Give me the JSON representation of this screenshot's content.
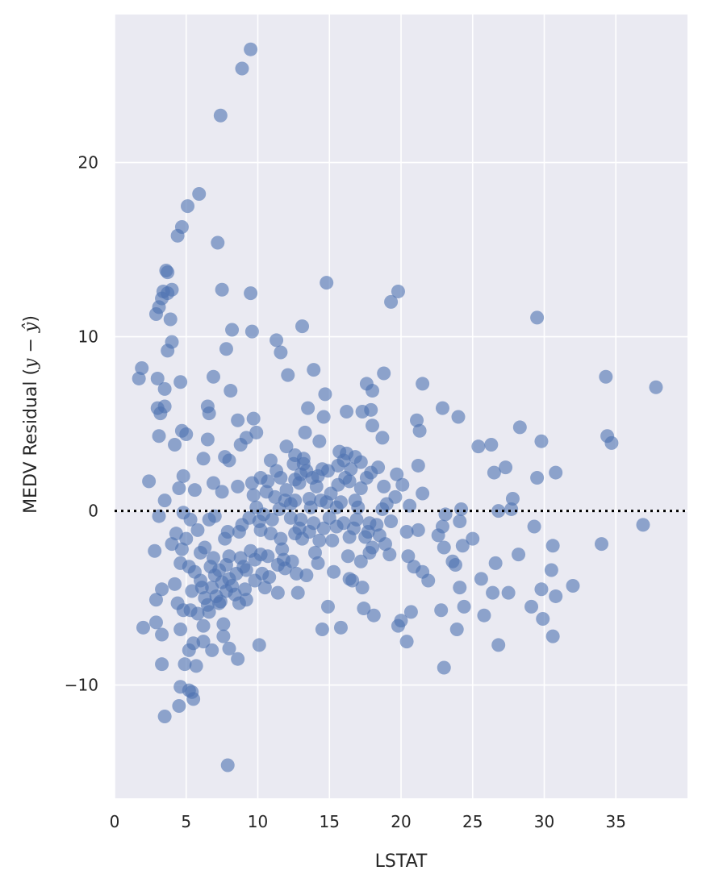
{
  "chart_data": {
    "type": "scatter",
    "title": "",
    "xlabel": "LSTAT",
    "ylabel_parts": [
      "MEDV Residual (",
      "y",
      " − ",
      "ŷ",
      ")"
    ],
    "xlim": [
      0,
      40
    ],
    "ylim": [
      -16.5,
      28.5
    ],
    "xticks": [
      0,
      5,
      10,
      15,
      20,
      25,
      30,
      35
    ],
    "xtick_labels": [
      "0",
      "5",
      "10",
      "15",
      "20",
      "25",
      "30",
      "35"
    ],
    "yticks": [
      -10,
      0,
      10,
      20
    ],
    "ytick_labels": [
      "−10",
      "0",
      "10",
      "20"
    ],
    "grid": true,
    "reference_line": {
      "y": 0,
      "style": "dotted",
      "color": "#000000"
    },
    "point_color": "#4c72b0",
    "point_alpha": 0.6,
    "background_color": "#eaeaf2",
    "points": [
      [
        9.5,
        26.5
      ],
      [
        8.9,
        25.4
      ],
      [
        7.4,
        22.7
      ],
      [
        5.9,
        18.2
      ],
      [
        5.1,
        17.5
      ],
      [
        4.7,
        16.3
      ],
      [
        4.4,
        15.8
      ],
      [
        7.2,
        15.4
      ],
      [
        3.6,
        13.8
      ],
      [
        3.7,
        13.7
      ],
      [
        14.8,
        13.1
      ],
      [
        7.5,
        12.7
      ],
      [
        4.0,
        12.7
      ],
      [
        3.4,
        12.6
      ],
      [
        3.7,
        12.5
      ],
      [
        9.5,
        12.5
      ],
      [
        19.8,
        12.6
      ],
      [
        3.3,
        12.2
      ],
      [
        3.1,
        11.7
      ],
      [
        19.3,
        12.0
      ],
      [
        2.9,
        11.3
      ],
      [
        3.9,
        11.0
      ],
      [
        29.5,
        11.1
      ],
      [
        8.2,
        10.4
      ],
      [
        13.1,
        10.6
      ],
      [
        9.6,
        10.3
      ],
      [
        11.3,
        9.8
      ],
      [
        4.0,
        9.7
      ],
      [
        3.7,
        9.2
      ],
      [
        11.6,
        9.1
      ],
      [
        7.8,
        9.3
      ],
      [
        1.9,
        8.2
      ],
      [
        1.7,
        7.6
      ],
      [
        3.0,
        7.6
      ],
      [
        4.6,
        7.4
      ],
      [
        6.9,
        7.7
      ],
      [
        13.9,
        8.1
      ],
      [
        12.1,
        7.8
      ],
      [
        18.8,
        7.9
      ],
      [
        21.5,
        7.3
      ],
      [
        3.5,
        7.0
      ],
      [
        8.1,
        6.9
      ],
      [
        17.6,
        7.3
      ],
      [
        18.0,
        6.9
      ],
      [
        34.3,
        7.7
      ],
      [
        37.8,
        7.1
      ],
      [
        14.7,
        6.7
      ],
      [
        3.0,
        5.9
      ],
      [
        3.5,
        6.0
      ],
      [
        6.5,
        6.0
      ],
      [
        3.2,
        5.6
      ],
      [
        4.7,
        4.6
      ],
      [
        5.0,
        4.4
      ],
      [
        6.6,
        5.6
      ],
      [
        8.6,
        5.2
      ],
      [
        9.7,
        5.3
      ],
      [
        13.5,
        5.9
      ],
      [
        14.6,
        5.4
      ],
      [
        16.2,
        5.7
      ],
      [
        17.3,
        5.7
      ],
      [
        17.9,
        5.8
      ],
      [
        18.0,
        4.9
      ],
      [
        21.1,
        5.2
      ],
      [
        21.3,
        4.6
      ],
      [
        22.9,
        5.9
      ],
      [
        24.0,
        5.4
      ],
      [
        28.3,
        4.8
      ],
      [
        3.1,
        4.3
      ],
      [
        4.2,
        3.8
      ],
      [
        6.5,
        4.1
      ],
      [
        9.2,
        4.2
      ],
      [
        9.9,
        4.5
      ],
      [
        8.8,
        3.8
      ],
      [
        12.0,
        3.7
      ],
      [
        13.3,
        4.5
      ],
      [
        14.3,
        4.0
      ],
      [
        15.7,
        3.4
      ],
      [
        16.2,
        3.3
      ],
      [
        17.2,
        2.8
      ],
      [
        18.7,
        4.2
      ],
      [
        29.8,
        4.0
      ],
      [
        34.4,
        4.3
      ],
      [
        34.7,
        3.9
      ],
      [
        25.4,
        3.7
      ],
      [
        26.3,
        3.8
      ],
      [
        2.4,
        1.7
      ],
      [
        4.8,
        2.0
      ],
      [
        6.2,
        3.0
      ],
      [
        7.7,
        3.1
      ],
      [
        8.0,
        2.9
      ],
      [
        10.9,
        2.9
      ],
      [
        11.3,
        2.3
      ],
      [
        12.6,
        3.2
      ],
      [
        13.2,
        2.7
      ],
      [
        14.5,
        2.4
      ],
      [
        16.8,
        3.1
      ],
      [
        18.4,
        2.5
      ],
      [
        19.7,
        2.1
      ],
      [
        21.2,
        2.6
      ],
      [
        26.5,
        2.2
      ],
      [
        27.3,
        2.5
      ],
      [
        29.5,
        1.9
      ],
      [
        30.8,
        2.2
      ],
      [
        4.5,
        1.3
      ],
      [
        5.6,
        1.2
      ],
      [
        6.9,
        1.6
      ],
      [
        7.5,
        1.1
      ],
      [
        8.6,
        1.4
      ],
      [
        9.6,
        1.6
      ],
      [
        10.2,
        1.9
      ],
      [
        11.6,
        1.9
      ],
      [
        12.9,
        1.6
      ],
      [
        14.1,
        1.4
      ],
      [
        15.1,
        1.0
      ],
      [
        16.1,
        1.9
      ],
      [
        17.2,
        1.3
      ],
      [
        18.8,
        1.4
      ],
      [
        20.1,
        1.5
      ],
      [
        21.5,
        1.0
      ],
      [
        3.5,
        0.6
      ],
      [
        9.7,
        0.9
      ],
      [
        10.6,
        1.1
      ],
      [
        11.2,
        0.8
      ],
      [
        11.9,
        0.6
      ],
      [
        12.3,
        0.4
      ],
      [
        13.6,
        0.7
      ],
      [
        14.8,
        0.5
      ],
      [
        15.5,
        0.2
      ],
      [
        17.0,
        0.2
      ],
      [
        18.7,
        0.1
      ],
      [
        20.6,
        0.3
      ],
      [
        23.1,
        -0.2
      ],
      [
        24.2,
        0.1
      ],
      [
        26.8,
        0.0
      ],
      [
        27.7,
        0.1
      ],
      [
        27.8,
        0.7
      ],
      [
        3.1,
        -0.3
      ],
      [
        4.8,
        -0.1
      ],
      [
        5.3,
        -0.5
      ],
      [
        6.6,
        -0.5
      ],
      [
        7.0,
        -0.3
      ],
      [
        9.4,
        -0.4
      ],
      [
        10.1,
        -0.6
      ],
      [
        11.0,
        -0.5
      ],
      [
        12.3,
        -0.4
      ],
      [
        13.0,
        -0.5
      ],
      [
        13.9,
        -0.7
      ],
      [
        15.0,
        -0.4
      ],
      [
        16.0,
        -0.7
      ],
      [
        16.9,
        -0.5
      ],
      [
        17.8,
        -0.7
      ],
      [
        18.3,
        -0.8
      ],
      [
        19.3,
        -0.6
      ],
      [
        22.9,
        -0.9
      ],
      [
        24.1,
        -0.6
      ],
      [
        29.3,
        -0.9
      ],
      [
        36.9,
        -0.8
      ],
      [
        4.0,
        -1.9
      ],
      [
        4.3,
        -1.3
      ],
      [
        5.0,
        -1.6
      ],
      [
        5.8,
        -1.1
      ],
      [
        7.7,
        -1.6
      ],
      [
        8.7,
        -1.2
      ],
      [
        10.2,
        -1.1
      ],
      [
        11.6,
        -1.6
      ],
      [
        13.1,
        -1.6
      ],
      [
        14.3,
        -1.7
      ],
      [
        15.2,
        -1.7
      ],
      [
        16.4,
        -1.5
      ],
      [
        17.7,
        -1.2
      ],
      [
        18.5,
        -1.4
      ],
      [
        20.4,
        -1.2
      ],
      [
        21.2,
        -1.1
      ],
      [
        22.6,
        -1.4
      ],
      [
        25.0,
        -1.6
      ],
      [
        24.3,
        -2.0
      ],
      [
        2.8,
        -2.3
      ],
      [
        4.7,
        -2.2
      ],
      [
        6.0,
        -2.4
      ],
      [
        6.9,
        -2.7
      ],
      [
        8.0,
        -2.6
      ],
      [
        9.5,
        -2.3
      ],
      [
        10.2,
        -2.5
      ],
      [
        11.7,
        -2.2
      ],
      [
        12.4,
        -2.9
      ],
      [
        14.0,
        -2.4
      ],
      [
        16.3,
        -2.6
      ],
      [
        17.2,
        -2.9
      ],
      [
        17.8,
        -2.4
      ],
      [
        19.2,
        -2.5
      ],
      [
        20.5,
        -2.6
      ],
      [
        23.0,
        -2.1
      ],
      [
        23.6,
        -2.9
      ],
      [
        28.2,
        -2.5
      ],
      [
        30.6,
        -2.0
      ],
      [
        34.0,
        -1.9
      ],
      [
        4.6,
        -3.0
      ],
      [
        5.2,
        -3.2
      ],
      [
        6.7,
        -3.2
      ],
      [
        7.8,
        -3.1
      ],
      [
        9.2,
        -3.4
      ],
      [
        10.3,
        -3.6
      ],
      [
        11.4,
        -3.1
      ],
      [
        12.7,
        -3.6
      ],
      [
        14.2,
        -3.0
      ],
      [
        15.3,
        -3.5
      ],
      [
        16.4,
        -3.9
      ],
      [
        20.9,
        -3.2
      ],
      [
        21.5,
        -3.5
      ],
      [
        23.8,
        -3.1
      ],
      [
        26.6,
        -3.0
      ],
      [
        30.5,
        -3.4
      ],
      [
        3.3,
        -4.5
      ],
      [
        4.2,
        -4.2
      ],
      [
        5.4,
        -4.6
      ],
      [
        6.8,
        -4.4
      ],
      [
        8.2,
        -4.3
      ],
      [
        9.1,
        -4.5
      ],
      [
        10.5,
        -4.4
      ],
      [
        11.4,
        -4.7
      ],
      [
        12.8,
        -4.7
      ],
      [
        13.4,
        -3.7
      ],
      [
        16.6,
        -4.0
      ],
      [
        17.3,
        -4.4
      ],
      [
        21.9,
        -4.0
      ],
      [
        24.1,
        -4.4
      ],
      [
        25.6,
        -3.9
      ],
      [
        27.5,
        -4.7
      ],
      [
        29.8,
        -4.5
      ],
      [
        30.8,
        -4.9
      ],
      [
        32.0,
        -4.3
      ],
      [
        2.9,
        -5.1
      ],
      [
        4.4,
        -5.3
      ],
      [
        5.3,
        -5.7
      ],
      [
        6.3,
        -5.0
      ],
      [
        7.4,
        -5.2
      ],
      [
        8.7,
        -5.3
      ],
      [
        9.2,
        -5.1
      ],
      [
        26.4,
        -4.7
      ],
      [
        4.8,
        -5.7
      ],
      [
        5.8,
        -5.9
      ],
      [
        6.6,
        -5.8
      ],
      [
        7.3,
        -5.3
      ],
      [
        14.9,
        -5.5
      ],
      [
        17.4,
        -5.6
      ],
      [
        18.1,
        -6.0
      ],
      [
        20.7,
        -5.8
      ],
      [
        22.8,
        -5.7
      ],
      [
        24.4,
        -5.5
      ],
      [
        29.1,
        -5.5
      ],
      [
        2.0,
        -6.7
      ],
      [
        2.9,
        -6.4
      ],
      [
        4.6,
        -6.8
      ],
      [
        6.2,
        -6.6
      ],
      [
        7.6,
        -6.5
      ],
      [
        15.8,
        -6.7
      ],
      [
        19.8,
        -6.6
      ],
      [
        20.0,
        -6.3
      ],
      [
        25.8,
        -6.0
      ],
      [
        29.9,
        -6.2
      ],
      [
        3.3,
        -7.1
      ],
      [
        5.5,
        -7.6
      ],
      [
        6.2,
        -7.5
      ],
      [
        7.6,
        -7.2
      ],
      [
        14.5,
        -6.8
      ],
      [
        20.4,
        -7.5
      ],
      [
        23.9,
        -6.8
      ],
      [
        26.8,
        -7.7
      ],
      [
        30.6,
        -7.2
      ],
      [
        5.2,
        -8.0
      ],
      [
        6.8,
        -8.0
      ],
      [
        8.0,
        -7.9
      ],
      [
        10.1,
        -7.7
      ],
      [
        3.3,
        -8.8
      ],
      [
        4.9,
        -8.8
      ],
      [
        5.7,
        -8.9
      ],
      [
        8.6,
        -8.5
      ],
      [
        23.0,
        -9.0
      ],
      [
        4.6,
        -10.1
      ],
      [
        5.2,
        -10.3
      ],
      [
        5.4,
        -10.4
      ],
      [
        5.5,
        -10.8
      ],
      [
        4.5,
        -11.2
      ],
      [
        3.5,
        -11.8
      ],
      [
        7.9,
        -14.6
      ],
      [
        6.0,
        -4.0
      ],
      [
        7.0,
        -3.7
      ],
      [
        7.5,
        -4.1
      ],
      [
        8.0,
        -3.9
      ],
      [
        8.5,
        -3.6
      ],
      [
        9.0,
        -3.2
      ],
      [
        9.8,
        -2.8
      ],
      [
        10.7,
        -2.6
      ],
      [
        11.8,
        -2.8
      ],
      [
        6.5,
        -5.4
      ],
      [
        7.1,
        -4.9
      ],
      [
        7.8,
        -4.6
      ],
      [
        8.4,
        -4.8
      ],
      [
        9.8,
        -4.0
      ],
      [
        10.8,
        -3.8
      ],
      [
        11.9,
        -3.3
      ],
      [
        12.9,
        -1.0
      ],
      [
        13.6,
        -1.2
      ],
      [
        14.6,
        -1.0
      ],
      [
        15.5,
        -0.9
      ],
      [
        16.7,
        -1.0
      ],
      [
        17.5,
        -1.5
      ],
      [
        18.0,
        -2.1
      ],
      [
        18.9,
        -1.9
      ],
      [
        12.0,
        1.2
      ],
      [
        12.6,
        1.8
      ],
      [
        13.0,
        2.1
      ],
      [
        13.4,
        2.3
      ],
      [
        13.8,
        1.9
      ],
      [
        14.2,
        2.0
      ],
      [
        14.9,
        2.3
      ],
      [
        15.6,
        2.6
      ],
      [
        16.0,
        2.9
      ],
      [
        16.5,
        2.4
      ],
      [
        17.6,
        1.9
      ],
      [
        13.7,
        0.2
      ],
      [
        14.4,
        0.6
      ],
      [
        15.8,
        0.5
      ],
      [
        16.8,
        0.6
      ],
      [
        11.5,
        0.1
      ],
      [
        12.6,
        0.6
      ],
      [
        10.7,
        1.7
      ],
      [
        9.9,
        0.2
      ],
      [
        10.4,
        -0.2
      ],
      [
        8.9,
        -0.8
      ],
      [
        7.9,
        -1.2
      ],
      [
        6.3,
        -2.1
      ],
      [
        5.6,
        -3.5
      ],
      [
        6.1,
        -4.4
      ],
      [
        7.3,
        -3.4
      ],
      [
        8.8,
        -2.7
      ],
      [
        10.9,
        -1.3
      ],
      [
        12.6,
        -1.3
      ],
      [
        15.6,
        1.5
      ],
      [
        16.4,
        1.7
      ],
      [
        17.9,
        2.2
      ],
      [
        19.0,
        0.4
      ],
      [
        19.6,
        0.8
      ],
      [
        13.2,
        3.0
      ],
      [
        12.5,
        2.7
      ]
    ]
  }
}
